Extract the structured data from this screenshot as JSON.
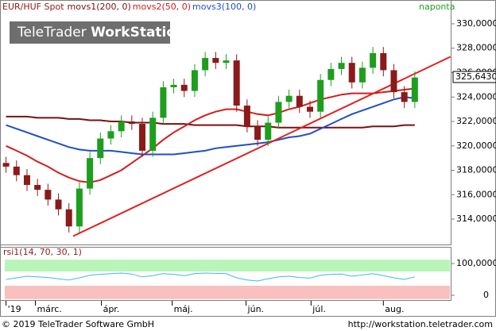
{
  "chart_data": [
    {
      "type": "candlestick",
      "title": "EUR/HUF Spot",
      "title_color": "#8b1a1a",
      "x": [
        0,
        1,
        2,
        3,
        4,
        5,
        6,
        7,
        8,
        9,
        10,
        11,
        12,
        13,
        14,
        15,
        16,
        17,
        18,
        19,
        20,
        21,
        22,
        23,
        24,
        25,
        26,
        27,
        28,
        29,
        30,
        31,
        32,
        33,
        34,
        35,
        36,
        37,
        38,
        39
      ],
      "open": [
        318.6,
        318.3,
        317.6,
        316.8,
        316.4,
        315.6,
        314.8,
        313.4,
        316.5,
        319.0,
        320.6,
        321.2,
        322.0,
        321.8,
        319.6,
        322.3,
        324.8,
        325.0,
        324.5,
        326.2,
        327.2,
        326.8,
        327.0,
        323.3,
        321.6,
        320.5,
        321.9,
        323.6,
        324.1,
        323.2,
        322.8,
        325.4,
        326.3,
        326.8,
        325.2,
        326.4,
        327.6,
        326.2,
        324.4,
        323.6
      ],
      "high": [
        319.1,
        318.8,
        318.1,
        317.3,
        316.9,
        316.1,
        315.3,
        317.0,
        319.5,
        321.1,
        321.7,
        322.5,
        322.5,
        322.3,
        322.8,
        325.3,
        325.5,
        325.5,
        326.7,
        327.7,
        327.7,
        327.5,
        327.5,
        323.8,
        322.1,
        322.4,
        324.1,
        324.6,
        324.6,
        323.7,
        325.9,
        326.8,
        327.3,
        327.3,
        326.9,
        328.1,
        328.1,
        326.7,
        324.9,
        326.1
      ],
      "low": [
        317.8,
        317.1,
        316.3,
        315.9,
        315.1,
        314.3,
        312.9,
        312.9,
        316.0,
        318.5,
        320.1,
        320.7,
        321.3,
        319.1,
        319.1,
        321.8,
        324.3,
        324.0,
        324.0,
        325.7,
        326.3,
        326.3,
        322.8,
        321.1,
        320.0,
        320.0,
        321.4,
        323.1,
        322.7,
        322.3,
        322.3,
        324.9,
        325.8,
        324.7,
        324.7,
        325.9,
        325.7,
        323.9,
        323.1,
        323.1
      ],
      "close": [
        318.3,
        317.6,
        316.8,
        316.4,
        315.6,
        314.8,
        313.4,
        316.5,
        319.0,
        320.6,
        321.2,
        322.0,
        321.8,
        319.6,
        322.3,
        324.8,
        325.0,
        324.5,
        326.2,
        327.2,
        326.8,
        327.0,
        323.3,
        321.6,
        320.5,
        321.9,
        323.6,
        324.1,
        323.2,
        322.8,
        325.4,
        326.3,
        326.8,
        325.2,
        326.4,
        327.6,
        326.2,
        324.4,
        323.6,
        325.6
      ],
      "up_color": "#1e9e1e",
      "down_color": "#8b1a1a",
      "series": [
        {
          "name": "movs1(200, 0)",
          "color": "#7a1010",
          "values": [
            322.4,
            322.4,
            322.4,
            322.3,
            322.3,
            322.3,
            322.2,
            322.2,
            322.1,
            322.1,
            322.0,
            322.0,
            321.9,
            321.9,
            321.9,
            321.8,
            321.8,
            321.8,
            321.7,
            321.7,
            321.7,
            321.7,
            321.7,
            321.6,
            321.6,
            321.6,
            321.5,
            321.5,
            321.5,
            321.5,
            321.5,
            321.5,
            321.5,
            321.5,
            321.5,
            321.6,
            321.6,
            321.6,
            321.7,
            321.7
          ]
        },
        {
          "name": "movs2(50, 0)",
          "color": "#d41c1c",
          "values": [
            320.0,
            319.6,
            319.2,
            318.7,
            318.3,
            317.8,
            317.4,
            317.1,
            317.0,
            317.2,
            317.6,
            318.0,
            318.6,
            319.2,
            319.8,
            320.5,
            321.1,
            321.6,
            322.1,
            322.5,
            322.8,
            323.0,
            323.0,
            322.8,
            322.6,
            322.5,
            322.7,
            323.0,
            323.2,
            323.5,
            323.8,
            324.0,
            324.2,
            324.3,
            324.3,
            324.3,
            324.4,
            324.5,
            324.6,
            324.7
          ]
        },
        {
          "name": "movs3(100, 0)",
          "color": "#1f4fc8",
          "values": [
            321.7,
            321.4,
            321.1,
            320.8,
            320.5,
            320.2,
            319.9,
            319.7,
            319.6,
            319.6,
            319.6,
            319.5,
            319.4,
            319.3,
            319.3,
            319.3,
            319.3,
            319.4,
            319.5,
            319.6,
            319.8,
            319.9,
            320.0,
            320.1,
            320.2,
            320.3,
            320.5,
            320.7,
            320.8,
            321.0,
            321.4,
            321.8,
            322.2,
            322.6,
            322.9,
            323.2,
            323.5,
            323.8,
            324.0,
            323.9
          ]
        }
      ],
      "trendline": {
        "color": "#e02020",
        "x": [
          6.4,
          42.4
        ],
        "values": [
          312.6,
          327.3
        ]
      },
      "last_price": {
        "value": 325.643,
        "label": "325,6430"
      },
      "period": "naponta",
      "xlim": [
        -0.5,
        42.5
      ],
      "ylim": [
        311.92,
        330.78
      ],
      "yticks": [
        {
          "value": 314,
          "label": "314,0000"
        },
        {
          "value": 316,
          "label": "316,0000"
        },
        {
          "value": 318,
          "label": "318,0000"
        },
        {
          "value": 320,
          "label": "320,0000"
        },
        {
          "value": 322,
          "label": "322,0000"
        },
        {
          "value": 324,
          "label": "324,0000"
        },
        {
          "value": 326,
          "label": "326,0000"
        },
        {
          "value": 328,
          "label": "328,0000"
        },
        {
          "value": 330,
          "label": "330,0000"
        }
      ],
      "xticks": [
        {
          "value": 0,
          "label": "'19"
        },
        {
          "value": 2.8,
          "label": "márc."
        },
        {
          "value": 9.1,
          "label": "ápr."
        },
        {
          "value": 15.85,
          "label": "máj."
        },
        {
          "value": 22.9,
          "label": "jún."
        },
        {
          "value": 29.1,
          "label": "júl."
        },
        {
          "value": 36,
          "label": "aug."
        }
      ]
    },
    {
      "type": "line",
      "title": "rsi1(14, 70, 30, 1)",
      "title_color": "#8b1a1a",
      "series": [
        {
          "color": "#40b8f0",
          "values": [
            50,
            55,
            60,
            58,
            56,
            52,
            48,
            55,
            63,
            66,
            68,
            70,
            67,
            58,
            62,
            68,
            66,
            62,
            68,
            70,
            69,
            68,
            55,
            48,
            45,
            52,
            58,
            60,
            56,
            54,
            63,
            66,
            67,
            60,
            64,
            68,
            62,
            55,
            50,
            58
          ]
        }
      ],
      "bands": [
        {
          "from": 75,
          "to": 112,
          "color": "#b8f5b8"
        },
        {
          "from": -12,
          "to": 30,
          "color": "#f9c0c0"
        }
      ],
      "ylim": [
        -15,
        145
      ],
      "yticks": [
        {
          "value": 0,
          "label": "0"
        },
        {
          "value": 100,
          "label": "100,0000"
        }
      ]
    }
  ],
  "watermark": [
    "TeleTrader",
    "WorkStation"
  ],
  "footer": {
    "left": "© 2019 TeleTrader Software GmbH",
    "right": "http://workstation.teletrader.com"
  }
}
